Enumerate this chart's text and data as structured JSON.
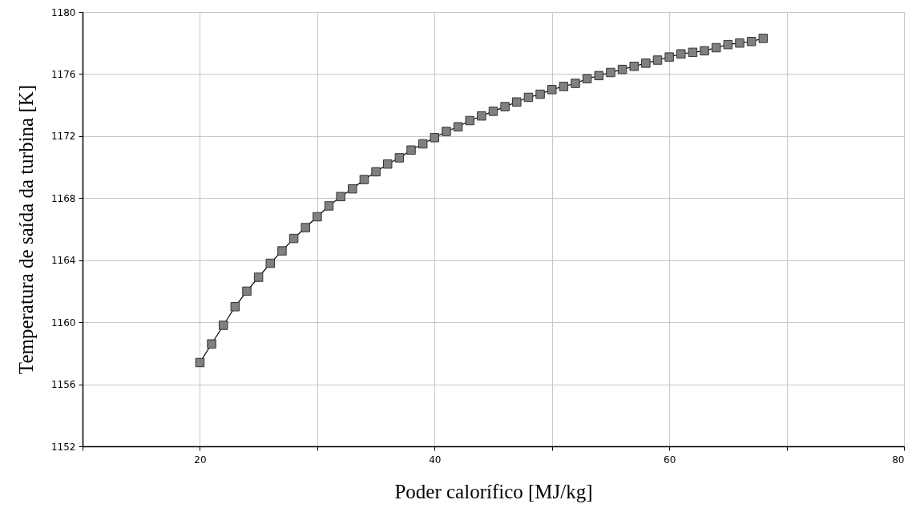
{
  "chart_data": {
    "type": "line",
    "xlabel": "Poder calorífico [MJ/kg]",
    "ylabel": "Temperatura de saída da turbina [K]",
    "x": [
      20,
      21,
      22,
      23,
      24,
      25,
      26,
      27,
      28,
      29,
      30,
      31,
      32,
      33,
      34,
      35,
      36,
      37,
      38,
      39,
      40,
      41,
      42,
      43,
      44,
      45,
      46,
      47,
      48,
      49,
      50,
      51,
      52,
      53,
      54,
      55,
      56,
      57,
      58,
      59,
      60,
      61,
      62,
      63,
      64,
      65,
      66,
      67,
      68
    ],
    "series": [
      {
        "color": "#808080",
        "values": [
          1157.4,
          1158.6,
          1159.8,
          1161.0,
          1162.0,
          1162.9,
          1163.8,
          1164.6,
          1165.4,
          1166.1,
          1166.8,
          1167.5,
          1168.1,
          1168.6,
          1169.2,
          1169.7,
          1170.2,
          1170.6,
          1171.1,
          1171.5,
          1171.9,
          1172.3,
          1172.6,
          1173.0,
          1173.3,
          1173.6,
          1173.9,
          1174.2,
          1174.5,
          1174.7,
          1175.0,
          1175.2,
          1175.4,
          1175.7,
          1175.9,
          1176.1,
          1176.3,
          1176.5,
          1176.7,
          1176.9,
          1177.1,
          1177.3,
          1177.4,
          1177.5,
          1177.7,
          1177.9,
          1178.0,
          1178.1,
          1178.3
        ]
      }
    ],
    "xlim": [
      10,
      80
    ],
    "xticks": [
      {
        "value": 10,
        "label": null
      },
      20,
      {
        "value": 30,
        "label": null
      },
      40,
      {
        "value": 50,
        "label": null
      },
      60,
      {
        "value": 70,
        "label": null
      },
      80
    ],
    "ylim": [
      1152,
      1180
    ],
    "yticks": [
      1152,
      1156,
      1160,
      1164,
      1168,
      1172,
      1176,
      1180
    ],
    "grid": true,
    "marker": "square",
    "line_style": "solid"
  }
}
